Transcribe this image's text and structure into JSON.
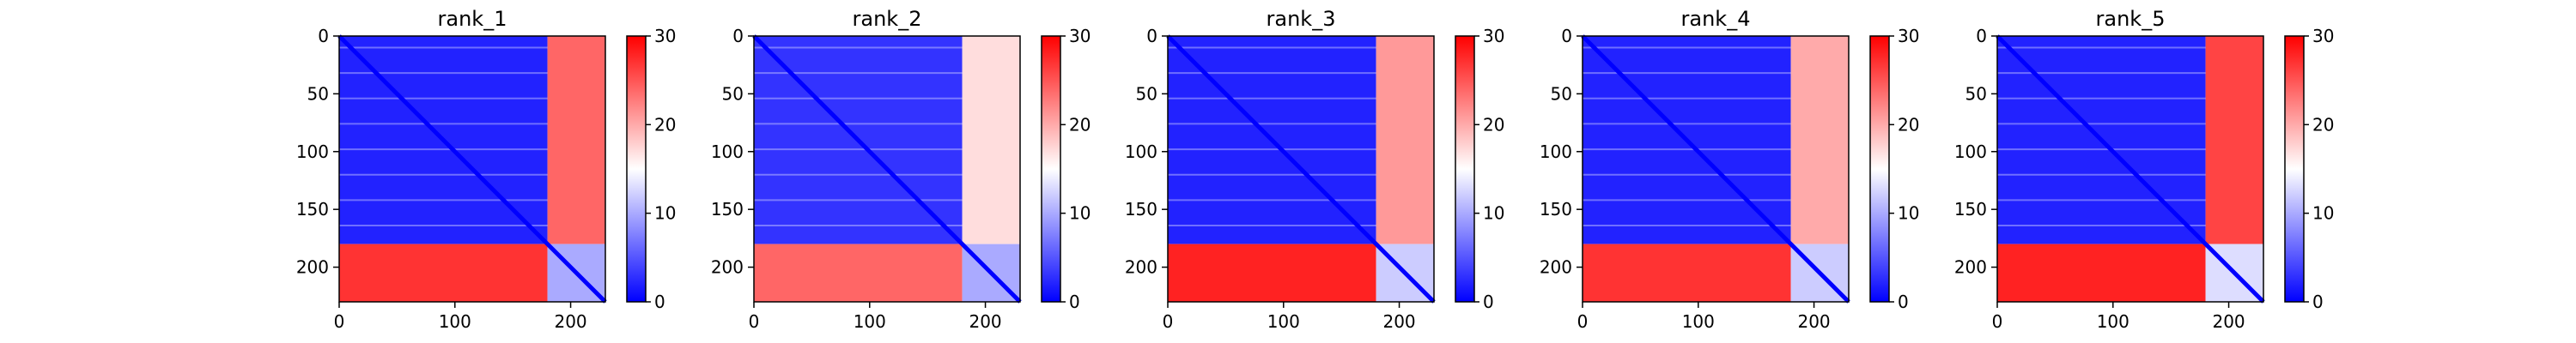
{
  "chart_data": [
    {
      "type": "heatmap",
      "title": "rank_1",
      "x_ticks": [
        0,
        100,
        200
      ],
      "y_ticks": [
        0,
        50,
        100,
        150,
        200
      ],
      "extent": [
        0,
        230
      ],
      "colorbar": {
        "ticks": [
          0,
          10,
          20,
          30
        ],
        "range": [
          0,
          30
        ],
        "colormap": "bwr"
      },
      "blocks": [
        {
          "rows": [
            0,
            180
          ],
          "cols": [
            0,
            180
          ],
          "value": 2,
          "note": "low"
        },
        {
          "rows": [
            0,
            180
          ],
          "cols": [
            180,
            230
          ],
          "value": 24,
          "note": "high"
        },
        {
          "rows": [
            180,
            230
          ],
          "cols": [
            0,
            180
          ],
          "value": 27,
          "note": "high"
        },
        {
          "rows": [
            180,
            230
          ],
          "cols": [
            180,
            230
          ],
          "value": 10,
          "note": "mid"
        }
      ],
      "diagonal_value": 0
    },
    {
      "type": "heatmap",
      "title": "rank_2",
      "x_ticks": [
        0,
        100,
        200
      ],
      "y_ticks": [
        0,
        50,
        100,
        150,
        200
      ],
      "extent": [
        0,
        230
      ],
      "colorbar": {
        "ticks": [
          0,
          10,
          20,
          30
        ],
        "range": [
          0,
          30
        ],
        "colormap": "bwr"
      },
      "blocks": [
        {
          "rows": [
            0,
            180
          ],
          "cols": [
            0,
            180
          ],
          "value": 3
        },
        {
          "rows": [
            0,
            180
          ],
          "cols": [
            180,
            230
          ],
          "value": 17
        },
        {
          "rows": [
            180,
            230
          ],
          "cols": [
            0,
            180
          ],
          "value": 24
        },
        {
          "rows": [
            180,
            230
          ],
          "cols": [
            180,
            230
          ],
          "value": 10
        }
      ],
      "diagonal_value": 0
    },
    {
      "type": "heatmap",
      "title": "rank_3",
      "x_ticks": [
        0,
        100,
        200
      ],
      "y_ticks": [
        0,
        50,
        100,
        150,
        200
      ],
      "extent": [
        0,
        230
      ],
      "colorbar": {
        "ticks": [
          0,
          10,
          20,
          30
        ],
        "range": [
          0,
          30
        ],
        "colormap": "bwr"
      },
      "blocks": [
        {
          "rows": [
            0,
            180
          ],
          "cols": [
            0,
            180
          ],
          "value": 2
        },
        {
          "rows": [
            0,
            180
          ],
          "cols": [
            180,
            230
          ],
          "value": 21
        },
        {
          "rows": [
            180,
            230
          ],
          "cols": [
            0,
            180
          ],
          "value": 28
        },
        {
          "rows": [
            180,
            230
          ],
          "cols": [
            180,
            230
          ],
          "value": 12
        }
      ],
      "diagonal_value": 0
    },
    {
      "type": "heatmap",
      "title": "rank_4",
      "x_ticks": [
        0,
        100,
        200
      ],
      "y_ticks": [
        0,
        50,
        100,
        150,
        200
      ],
      "extent": [
        0,
        230
      ],
      "colorbar": {
        "ticks": [
          0,
          10,
          20,
          30
        ],
        "range": [
          0,
          30
        ],
        "colormap": "bwr"
      },
      "blocks": [
        {
          "rows": [
            0,
            180
          ],
          "cols": [
            0,
            180
          ],
          "value": 2
        },
        {
          "rows": [
            0,
            180
          ],
          "cols": [
            180,
            230
          ],
          "value": 20
        },
        {
          "rows": [
            180,
            230
          ],
          "cols": [
            0,
            180
          ],
          "value": 27
        },
        {
          "rows": [
            180,
            230
          ],
          "cols": [
            180,
            230
          ],
          "value": 12
        }
      ],
      "diagonal_value": 0
    },
    {
      "type": "heatmap",
      "title": "rank_5",
      "x_ticks": [
        0,
        100,
        200
      ],
      "y_ticks": [
        0,
        50,
        100,
        150,
        200
      ],
      "extent": [
        0,
        230
      ],
      "colorbar": {
        "ticks": [
          0,
          10,
          20,
          30
        ],
        "range": [
          0,
          30
        ],
        "colormap": "bwr"
      },
      "blocks": [
        {
          "rows": [
            0,
            180
          ],
          "cols": [
            0,
            180
          ],
          "value": 2
        },
        {
          "rows": [
            0,
            180
          ],
          "cols": [
            180,
            230
          ],
          "value": 26
        },
        {
          "rows": [
            180,
            230
          ],
          "cols": [
            0,
            180
          ],
          "value": 28
        },
        {
          "rows": [
            180,
            230
          ],
          "cols": [
            180,
            230
          ],
          "value": 13
        }
      ],
      "diagonal_value": 0
    }
  ]
}
